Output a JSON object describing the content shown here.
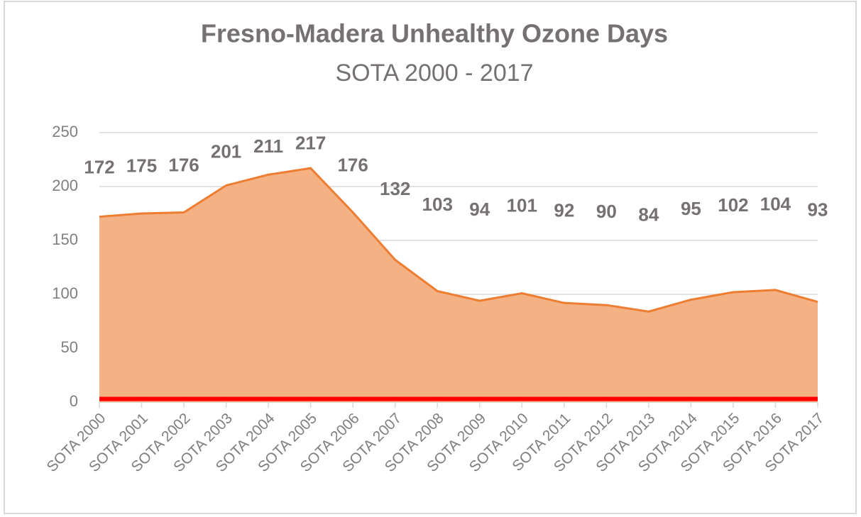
{
  "chart_data": {
    "type": "area",
    "title": "Fresno-Madera  Unhealthy Ozone Days",
    "subtitle": "SOTA 2000 - 2017",
    "categories": [
      "SOTA 2000",
      "SOTA 2001",
      "SOTA 2002",
      "SOTA 2003",
      "SOTA 2004",
      "SOTA 2005",
      "SOTA 2006",
      "SOTA 2007",
      "SOTA 2008",
      "SOTA 2009",
      "SOTA 2010",
      "SOTA 2011",
      "SOTA 2012",
      "SOTA 2013",
      "SOTA 2014",
      "SOTA 2015",
      "SOTA 2016",
      "SOTA 2017"
    ],
    "series": [
      {
        "type": "area",
        "color": "#ed7d31",
        "fill": "#f4b183",
        "values": [
          172,
          175,
          176,
          201,
          211,
          217,
          176,
          132,
          103,
          94,
          101,
          92,
          90,
          84,
          95,
          102,
          104,
          93
        ]
      },
      {
        "type": "line",
        "color": "#ff0000",
        "values": [
          3,
          3,
          3,
          3,
          3,
          3,
          3,
          3,
          3,
          3,
          3,
          3,
          3,
          3,
          3,
          3,
          3,
          3
        ]
      }
    ],
    "ylim": [
      0,
      250
    ],
    "yticks": [
      0,
      50,
      100,
      150,
      200,
      250
    ],
    "grid": true
  }
}
